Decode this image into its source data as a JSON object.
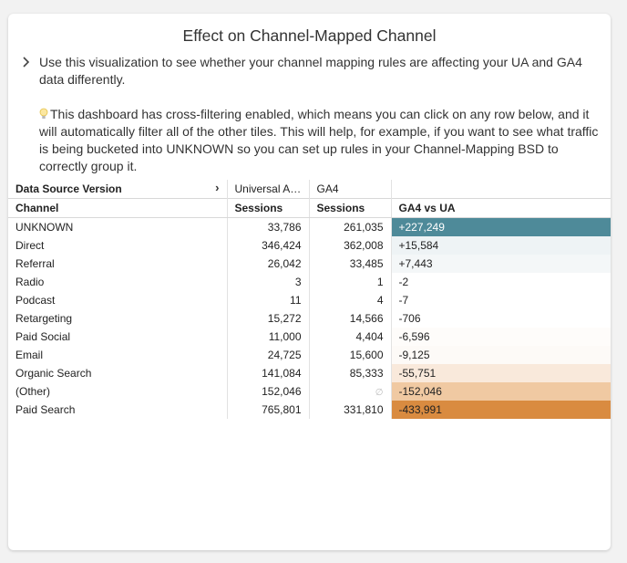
{
  "tile": {
    "title": "Effect on Channel-Mapped Channel",
    "description_1": "Use this visualization to see whether your channel mapping rules are affecting your UA and GA4 data differently.",
    "description_2": "This dashboard has cross-filtering enabled, which means you can click on any row below, and it will automatically filter all of the other tiles. This will help, for example, if you want to see what traffic is being bucketed into UNKNOWN so you can set up rules in your Channel-Mapping BSD to correctly group it."
  },
  "table": {
    "pivot_label": "Data Source Version",
    "pivot_values": [
      "Universal An…",
      "GA4"
    ],
    "columns": [
      "Channel",
      "Sessions",
      "Sessions",
      "GA4 vs UA"
    ],
    "null_symbol": "∅",
    "rows": [
      {
        "channel": "UNKNOWN",
        "ua": "33,786",
        "ga4": "261,035",
        "diff": "+227,249",
        "bg": "#4e8a99",
        "fg": "#ffffff"
      },
      {
        "channel": "Direct",
        "ua": "346,424",
        "ga4": "362,008",
        "diff": "+15,584",
        "bg": "#eef3f5",
        "fg": "#222222"
      },
      {
        "channel": "Referral",
        "ua": "26,042",
        "ga4": "33,485",
        "diff": "+7,443",
        "bg": "#f4f7f8",
        "fg": "#222222"
      },
      {
        "channel": "Radio",
        "ua": "3",
        "ga4": "1",
        "diff": "-2",
        "bg": "#ffffff",
        "fg": "#222222"
      },
      {
        "channel": "Podcast",
        "ua": "11",
        "ga4": "4",
        "diff": "-7",
        "bg": "#ffffff",
        "fg": "#222222"
      },
      {
        "channel": "Retargeting",
        "ua": "15,272",
        "ga4": "14,566",
        "diff": "-706",
        "bg": "#ffffff",
        "fg": "#222222"
      },
      {
        "channel": "Paid Social",
        "ua": "11,000",
        "ga4": "4,404",
        "diff": "-6,596",
        "bg": "#fefcfa",
        "fg": "#222222"
      },
      {
        "channel": "Email",
        "ua": "24,725",
        "ga4": "15,600",
        "diff": "-9,125",
        "bg": "#fdfaf7",
        "fg": "#222222"
      },
      {
        "channel": "Organic Search",
        "ua": "141,084",
        "ga4": "85,333",
        "diff": "-55,751",
        "bg": "#f9e9db",
        "fg": "#222222"
      },
      {
        "channel": "(Other)",
        "ua": "152,046",
        "ga4": null,
        "diff": "-152,046",
        "bg": "#f0c9a2",
        "fg": "#222222"
      },
      {
        "channel": "Paid Search",
        "ua": "765,801",
        "ga4": "331,810",
        "diff": "-433,991",
        "bg": "#d98b40",
        "fg": "#222222"
      }
    ]
  },
  "icons": {
    "expand": "chevron-right-icon",
    "tip": "lightbulb-icon",
    "pivot": "chevron-right-icon"
  }
}
